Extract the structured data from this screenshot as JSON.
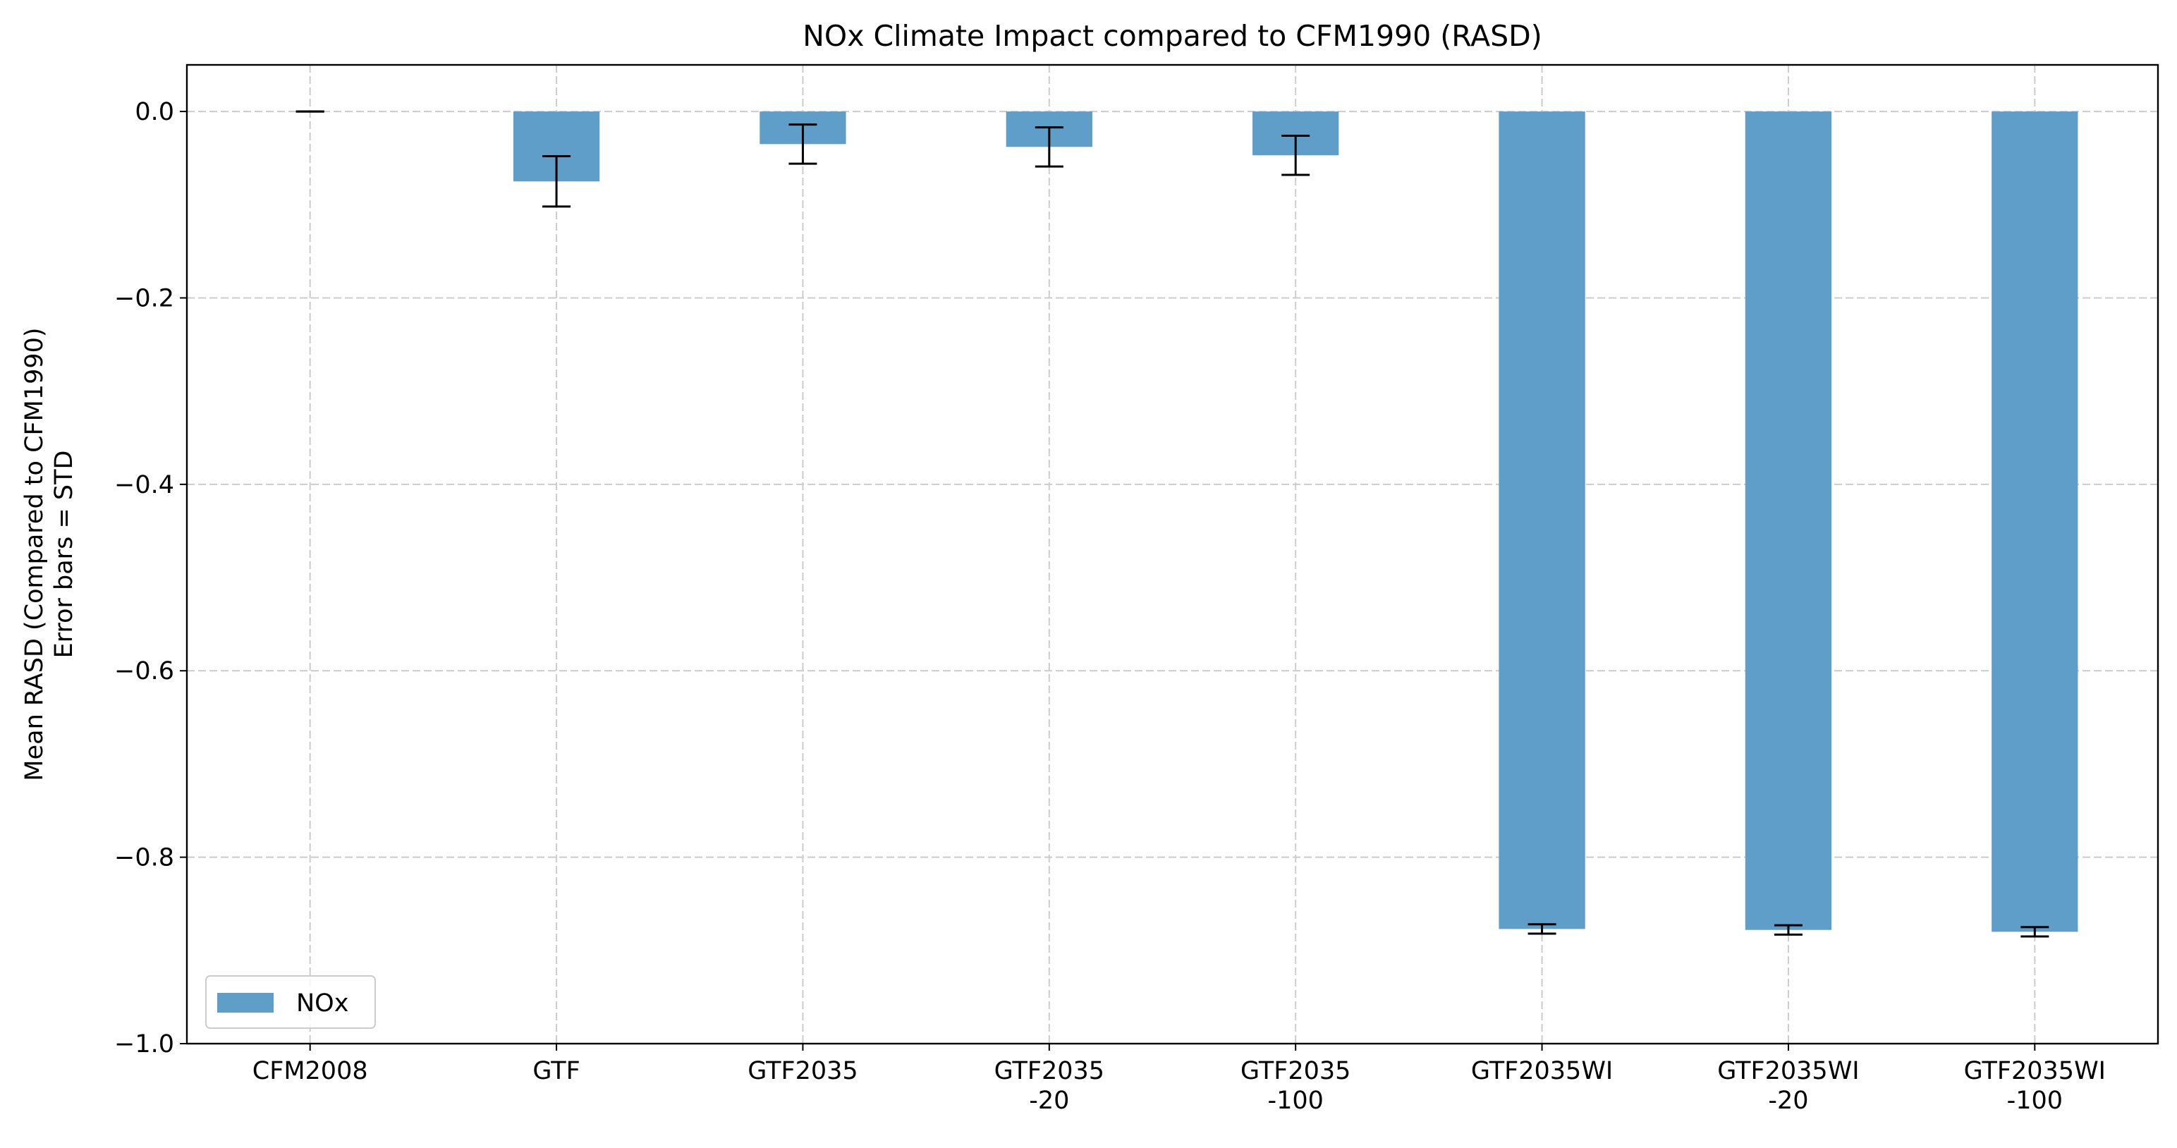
{
  "chart_data": {
    "type": "bar",
    "title": "NOx Climate Impact compared to CFM1990 (RASD)",
    "xlabel": "",
    "ylabel_lines": [
      "Mean RASD (Compared to CFM1990)",
      "Error bars = STD"
    ],
    "categories": [
      [
        "CFM2008"
      ],
      [
        "GTF"
      ],
      [
        "GTF2035"
      ],
      [
        "GTF2035",
        "-20"
      ],
      [
        "GTF2035",
        "-100"
      ],
      [
        "GTF2035WI"
      ],
      [
        "GTF2035WI",
        "-20"
      ],
      [
        "GTF2035WI",
        "-100"
      ]
    ],
    "series": [
      {
        "name": "NOx",
        "color": "#5f9ec9",
        "values": [
          0.0,
          -0.075,
          -0.035,
          -0.038,
          -0.047,
          -0.877,
          -0.878,
          -0.88
        ],
        "errors": [
          0.0,
          0.027,
          0.021,
          0.021,
          0.021,
          0.005,
          0.005,
          0.005
        ]
      }
    ],
    "ylim": [
      -1.0,
      0.05
    ],
    "yticks": [
      0.0,
      -0.2,
      -0.4,
      -0.6,
      -0.8,
      -1.0
    ],
    "ytick_labels": [
      "0.0",
      "−0.2",
      "−0.4",
      "−0.6",
      "−0.8",
      "−1.0"
    ],
    "grid": true,
    "legend_position": "lower-left"
  }
}
